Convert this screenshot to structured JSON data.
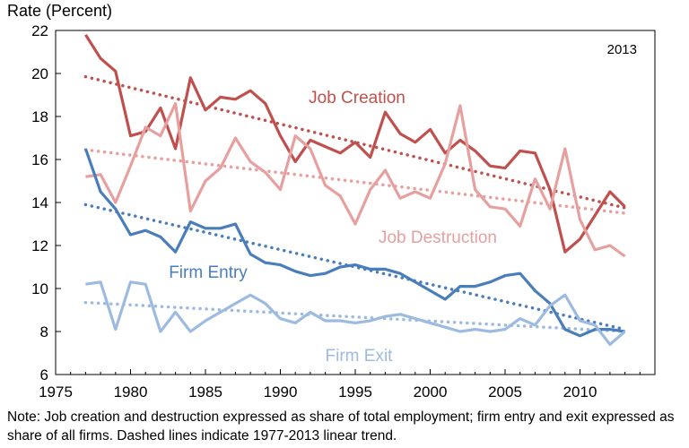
{
  "chart_data": {
    "type": "line",
    "ylabel": "Rate (Percent)",
    "xlabel": "",
    "annotation": "2013",
    "xlim": [
      1975,
      2015
    ],
    "ylim": [
      6,
      22
    ],
    "x_ticks": [
      1975,
      1980,
      1985,
      1990,
      1995,
      2000,
      2005,
      2010
    ],
    "y_ticks": [
      6,
      8,
      10,
      12,
      14,
      16,
      18,
      20,
      22
    ],
    "grid": false,
    "legend": "inline labels",
    "x": [
      1977,
      1978,
      1979,
      1980,
      1981,
      1982,
      1983,
      1984,
      1985,
      1986,
      1987,
      1988,
      1989,
      1990,
      1991,
      1992,
      1993,
      1994,
      1995,
      1996,
      1997,
      1998,
      1999,
      2000,
      2001,
      2002,
      2003,
      2004,
      2005,
      2006,
      2007,
      2008,
      2009,
      2010,
      2011,
      2012,
      2013
    ],
    "series": [
      {
        "name": "Job Creation",
        "color": "#c0504d",
        "values": [
          21.8,
          20.7,
          20.1,
          17.1,
          17.3,
          18.4,
          16.5,
          19.8,
          18.3,
          18.9,
          18.8,
          19.2,
          18.6,
          17.1,
          15.9,
          16.9,
          16.6,
          16.3,
          16.8,
          16.1,
          18.2,
          17.2,
          16.8,
          17.4,
          16.3,
          16.9,
          16.4,
          15.7,
          15.6,
          16.4,
          16.3,
          14.6,
          11.7,
          12.3,
          13.4,
          14.5,
          13.8
        ],
        "trend": [
          19.85,
          13.75
        ]
      },
      {
        "name": "Job Destruction",
        "color": "#e6a0a0",
        "values": [
          15.2,
          15.3,
          14.0,
          15.7,
          17.5,
          17.1,
          18.6,
          13.6,
          15.0,
          15.6,
          17.0,
          15.9,
          15.4,
          14.6,
          17.1,
          16.5,
          14.8,
          14.3,
          13.0,
          14.6,
          15.5,
          14.2,
          14.5,
          14.2,
          15.8,
          18.5,
          14.6,
          13.8,
          13.7,
          12.9,
          15.1,
          13.7,
          16.5,
          13.2,
          11.8,
          12.0,
          11.5
        ],
        "trend": [
          16.45,
          13.5
        ]
      },
      {
        "name": "Firm Entry",
        "color": "#4a7ebb",
        "values": [
          16.5,
          14.5,
          13.7,
          12.5,
          12.7,
          12.4,
          11.7,
          13.1,
          12.8,
          12.8,
          13.0,
          11.6,
          11.2,
          11.1,
          10.8,
          10.6,
          10.7,
          11.0,
          11.1,
          10.9,
          10.9,
          10.7,
          10.3,
          9.9,
          9.5,
          10.1,
          10.1,
          10.3,
          10.6,
          10.7,
          9.9,
          9.3,
          8.1,
          7.8,
          8.1,
          8.1,
          8.0
        ],
        "trend": [
          13.9,
          8.1
        ]
      },
      {
        "name": "Firm Exit",
        "color": "#9dbbe0",
        "values": [
          10.2,
          10.3,
          8.1,
          10.3,
          10.2,
          8.0,
          8.9,
          8.0,
          8.5,
          8.9,
          9.3,
          9.7,
          9.3,
          8.6,
          8.4,
          8.9,
          8.5,
          8.5,
          8.4,
          8.5,
          8.7,
          8.8,
          8.6,
          8.4,
          8.2,
          8.0,
          8.1,
          8.0,
          8.1,
          8.6,
          8.3,
          9.2,
          9.7,
          8.5,
          8.3,
          7.4,
          8.0
        ],
        "trend": [
          9.35,
          8.0
        ]
      }
    ]
  },
  "note": "Note: Job creation and destruction expressed as share of total employment; firm entry and exit expressed as share of all firms. Dashed lines indicate 1977-2013 linear trend."
}
